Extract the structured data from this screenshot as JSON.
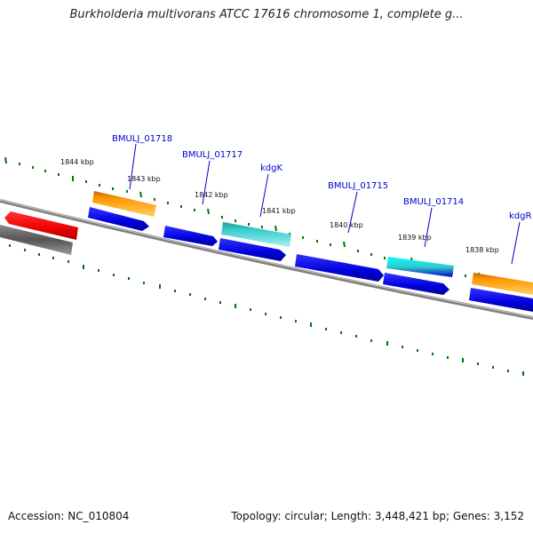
{
  "title": "Burkholderia multivorans ATCC 17616 chromosome 1, complete g...",
  "footer": {
    "accession": "Accession: NC_010804",
    "info": "Topology: circular; Length: 3,448,421 bp; Genes: 3,152"
  },
  "kbp_labels": [
    "1844 kbp",
    "1843 kbp",
    "1842 kbp",
    "1841 kbp",
    "1840 kbp",
    "1839 kbp",
    "1838 kbp"
  ],
  "gene_labels": [
    "BMULJ_01718",
    "BMULJ_01717",
    "kdgK",
    "BMULJ_01715",
    "BMULJ_01714",
    "kdgR"
  ],
  "colors": {
    "backbone": "#808080",
    "blue_gene": "#0000dd",
    "orange_gene": "#ff9900",
    "cyan_gene": "#33cccc",
    "red_gene": "#ee0000",
    "gray_gene": "#666666",
    "tick": "#007700",
    "label": "#0000cc"
  }
}
